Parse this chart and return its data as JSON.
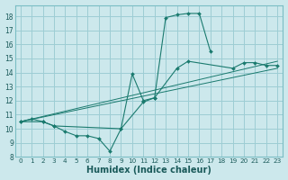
{
  "xlabel": "Humidex (Indice chaleur)",
  "bg_color": "#cce8ec",
  "grid_color": "#9dcdd4",
  "line_color": "#1a7a6e",
  "xlim": [
    -0.5,
    23.5
  ],
  "ylim": [
    8,
    18.8
  ],
  "xticks": [
    0,
    1,
    2,
    3,
    4,
    5,
    6,
    7,
    8,
    9,
    10,
    11,
    12,
    13,
    14,
    15,
    16,
    17,
    18,
    19,
    20,
    21,
    22,
    23
  ],
  "yticks": [
    8,
    9,
    10,
    11,
    12,
    13,
    14,
    15,
    16,
    17,
    18
  ],
  "curve1_x": [
    0,
    1,
    2,
    3,
    4,
    5,
    6,
    7,
    8,
    9,
    10,
    11,
    12,
    13,
    14,
    15,
    16,
    17
  ],
  "curve1_y": [
    10.5,
    10.7,
    10.5,
    10.2,
    9.8,
    9.5,
    9.5,
    9.3,
    8.4,
    10.0,
    13.9,
    12.0,
    12.2,
    17.9,
    18.1,
    18.2,
    18.2,
    15.5
  ],
  "curve2_x": [
    0,
    2,
    3,
    9,
    11,
    12,
    14,
    15,
    19,
    20,
    21,
    22,
    23
  ],
  "curve2_y": [
    10.5,
    10.5,
    10.2,
    10.0,
    11.9,
    12.2,
    14.3,
    14.8,
    14.3,
    14.7,
    14.7,
    14.5,
    14.5
  ],
  "line1_x": [
    0,
    23
  ],
  "line1_y": [
    10.5,
    14.8
  ],
  "line2_x": [
    0,
    23
  ],
  "line2_y": [
    10.5,
    14.3
  ]
}
